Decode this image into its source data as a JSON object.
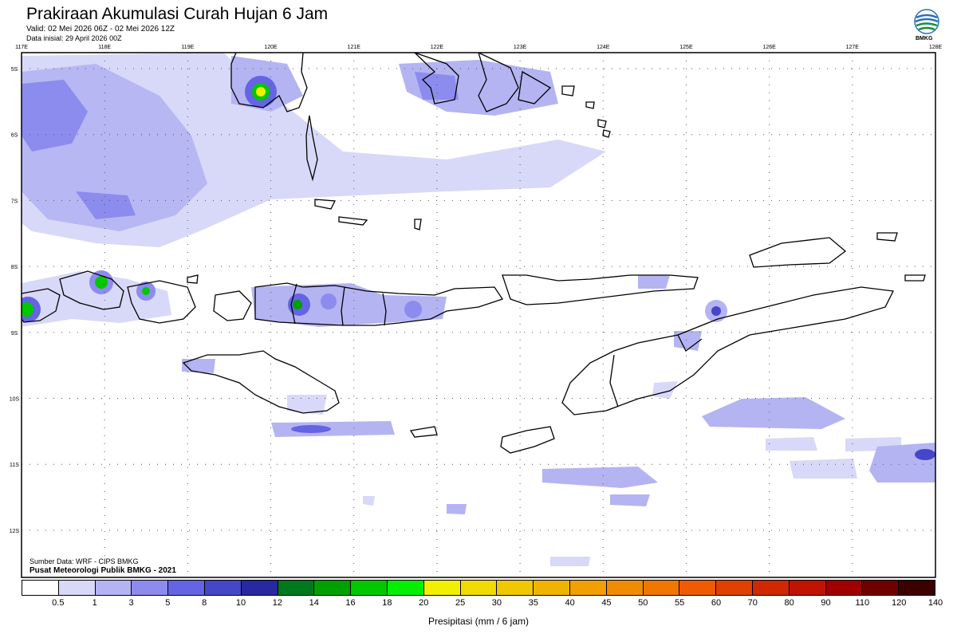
{
  "header": {
    "title": "Prakiraan Akumulasi Curah Hujan 6 Jam",
    "valid": "Valid: 02 Mei 2026 06Z - 02 Mei 2026 12Z",
    "initial": "Data inisial: 29 April 2026 00Z",
    "logo_text": "BMKG"
  },
  "map": {
    "lon_labels": [
      "117E",
      "118E",
      "119E",
      "120E",
      "121E",
      "122E",
      "123E",
      "124E",
      "125E",
      "126E",
      "127E",
      "128E"
    ],
    "lat_labels": [
      "5S",
      "6S",
      "7S",
      "8S",
      "9S",
      "10S",
      "11S",
      "12S"
    ],
    "land_outline_color": "#000000",
    "grid_style": "dotted"
  },
  "legend": {
    "ticks": [
      "0.5",
      "1",
      "3",
      "5",
      "8",
      "10",
      "12",
      "14",
      "16",
      "18",
      "20",
      "25",
      "30",
      "35",
      "40",
      "45",
      "50",
      "55",
      "60",
      "70",
      "80",
      "90",
      "110",
      "120",
      "140"
    ],
    "colors": [
      "#ffffff",
      "#d8d8f8",
      "#b4b4f2",
      "#8c8cee",
      "#6464e4",
      "#4646c8",
      "#2828a0",
      "#00781e",
      "#00a000",
      "#00c800",
      "#00f000",
      "#f0f000",
      "#f0dc00",
      "#f0c800",
      "#f0b400",
      "#f0a000",
      "#f08c00",
      "#f07800",
      "#f05a00",
      "#e04000",
      "#d02800",
      "#c01400",
      "#a00000",
      "#6e0000",
      "#3c0000"
    ],
    "title": "Presipitasi (mm / 6 jam)"
  },
  "footer": {
    "source": "Sumber Data: WRF - CIPS BMKG",
    "center": "Pusat Meteorologi Publik BMKG - 2021"
  }
}
